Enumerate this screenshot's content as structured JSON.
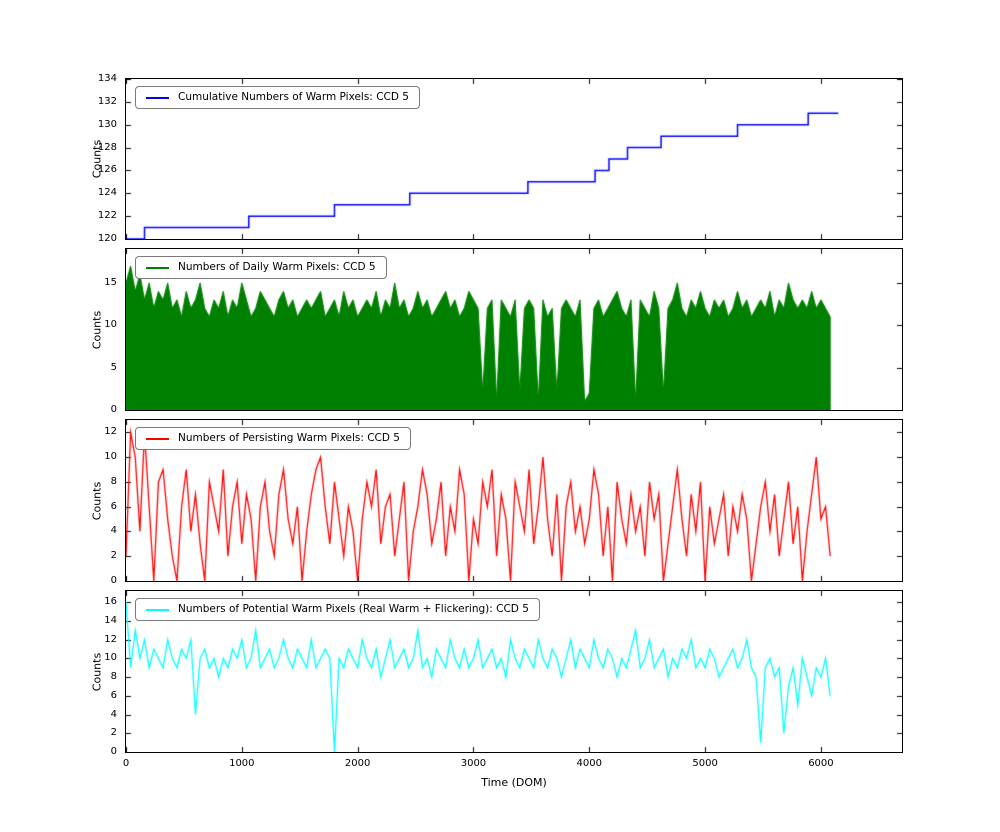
{
  "figure": {
    "xlabel": "Time (DOM)",
    "ylabel": "Counts",
    "x_ticks": [
      0,
      1000,
      2000,
      3000,
      4000,
      5000,
      6000
    ],
    "x_range": [
      0,
      6700
    ],
    "background": "#ffffff",
    "axis_color": "#000000"
  },
  "chart_data": [
    {
      "type": "step",
      "title": "",
      "legend": "Cumulative Numbers of Warm Pixels: CCD 5",
      "color": "#0000ff",
      "ylabel": "Counts",
      "ylim": [
        120,
        134
      ],
      "yticks": [
        120,
        122,
        124,
        126,
        128,
        130,
        132,
        134
      ],
      "steps": [
        [
          0,
          120
        ],
        [
          160,
          121
        ],
        [
          1060,
          122
        ],
        [
          1800,
          123
        ],
        [
          2450,
          124
        ],
        [
          3470,
          125
        ],
        [
          4050,
          126
        ],
        [
          4170,
          127
        ],
        [
          4330,
          128
        ],
        [
          4620,
          129
        ],
        [
          5280,
          130
        ],
        [
          5890,
          131
        ]
      ],
      "end_x": 6150
    },
    {
      "type": "area",
      "title": "",
      "legend": "Numbers of Daily Warm Pixels: CCD 5",
      "color": "#008000",
      "ylabel": "Counts",
      "ylim": [
        0,
        19
      ],
      "yticks": [
        0,
        5,
        10,
        15
      ],
      "x0": 0,
      "dx": 40,
      "values": [
        15,
        17,
        14,
        16,
        13,
        15,
        12,
        14,
        13,
        15,
        12,
        13,
        11,
        14,
        12,
        13,
        15,
        12,
        11,
        13,
        12,
        14,
        11,
        13,
        12,
        15,
        13,
        11,
        12,
        14,
        13,
        12,
        11,
        13,
        14,
        12,
        13,
        11,
        12,
        13,
        12,
        13,
        14,
        11,
        12,
        13,
        11,
        14,
        12,
        13,
        11,
        12,
        13,
        12,
        14,
        11,
        13,
        12,
        15,
        12,
        13,
        11,
        12,
        14,
        12,
        13,
        11,
        12,
        13,
        14,
        12,
        13,
        11,
        12,
        14,
        13,
        12,
        2,
        12,
        13,
        1,
        13,
        12,
        11,
        13,
        2,
        12,
        13,
        12,
        1,
        13,
        11,
        12,
        2,
        12,
        13,
        12,
        11,
        13,
        1,
        2,
        12,
        13,
        11,
        12,
        13,
        14,
        12,
        11,
        13,
        1,
        13,
        12,
        11,
        14,
        12,
        2,
        12,
        13,
        15,
        12,
        11,
        13,
        12,
        14,
        12,
        11,
        13,
        12,
        13,
        11,
        12,
        14,
        12,
        13,
        11,
        12,
        13,
        12,
        14,
        11,
        13,
        12,
        15,
        13,
        12,
        13,
        12,
        14,
        12,
        13,
        12,
        11
      ]
    },
    {
      "type": "line",
      "title": "",
      "legend": "Numbers of Persisting Warm Pixels: CCD 5",
      "color": "#ff0000",
      "ylabel": "Counts",
      "ylim": [
        0,
        13
      ],
      "yticks": [
        0,
        2,
        4,
        6,
        8,
        10,
        12
      ],
      "x0": 0,
      "dx": 40,
      "values": [
        2,
        12,
        10,
        4,
        12,
        6,
        0,
        8,
        9,
        5,
        2,
        0,
        6,
        9,
        4,
        7,
        3,
        0,
        8,
        6,
        4,
        9,
        2,
        6,
        8,
        3,
        7,
        5,
        0,
        6,
        8,
        4,
        2,
        7,
        9,
        5,
        3,
        6,
        0,
        4,
        7,
        9,
        10,
        6,
        3,
        8,
        5,
        2,
        6,
        4,
        0,
        5,
        8,
        6,
        9,
        3,
        6,
        7,
        2,
        5,
        8,
        0,
        4,
        6,
        9,
        7,
        3,
        5,
        8,
        2,
        6,
        4,
        9,
        7,
        0,
        5,
        3,
        8,
        6,
        9,
        2,
        7,
        5,
        0,
        8,
        6,
        4,
        9,
        3,
        6,
        10,
        5,
        2,
        7,
        0,
        6,
        8,
        4,
        6,
        3,
        5,
        9,
        7,
        2,
        6,
        0,
        8,
        5,
        3,
        7,
        4,
        6,
        2,
        8,
        5,
        7,
        0,
        3,
        6,
        9,
        5,
        2,
        7,
        4,
        8,
        0,
        6,
        3,
        5,
        7,
        2,
        6,
        4,
        7,
        5,
        0,
        3,
        6,
        8,
        4,
        7,
        2,
        5,
        8,
        3,
        6,
        0,
        4,
        7,
        10,
        5,
        6,
        2
      ]
    },
    {
      "type": "line",
      "title": "",
      "legend": "Numbers of Potential Warm Pixels (Real Warm + Flickering): CCD 5",
      "color": "#00ffff",
      "ylabel": "Counts",
      "ylim": [
        0,
        17.2
      ],
      "yticks": [
        0,
        2,
        4,
        6,
        8,
        10,
        12,
        14,
        16
      ],
      "x0": 0,
      "dx": 40,
      "values": [
        16,
        9,
        13,
        10,
        12,
        9,
        11,
        10,
        9,
        12,
        10,
        9,
        11,
        10,
        12,
        4,
        10,
        11,
        9,
        10,
        8,
        10,
        9,
        11,
        10,
        12,
        9,
        10,
        13,
        9,
        10,
        11,
        9,
        10,
        12,
        10,
        9,
        11,
        10,
        9,
        12,
        9,
        10,
        11,
        10,
        0,
        10,
        9,
        11,
        10,
        9,
        12,
        10,
        9,
        11,
        8,
        10,
        12,
        9,
        10,
        11,
        9,
        10,
        13,
        9,
        10,
        8,
        11,
        10,
        9,
        12,
        10,
        9,
        11,
        9,
        10,
        12,
        9,
        10,
        11,
        9,
        10,
        8,
        12,
        10,
        9,
        11,
        10,
        9,
        12,
        10,
        9,
        11,
        10,
        8,
        10,
        12,
        9,
        11,
        10,
        9,
        12,
        10,
        9,
        11,
        10,
        8,
        10,
        9,
        11,
        13,
        9,
        10,
        12,
        9,
        10,
        11,
        8,
        10,
        9,
        11,
        10,
        12,
        9,
        10,
        9,
        11,
        10,
        8,
        9,
        10,
        11,
        9,
        10,
        12,
        9,
        8,
        1,
        9,
        10,
        8,
        9,
        2,
        7,
        9,
        5,
        10,
        8,
        6,
        9,
        8,
        10,
        6
      ]
    }
  ]
}
